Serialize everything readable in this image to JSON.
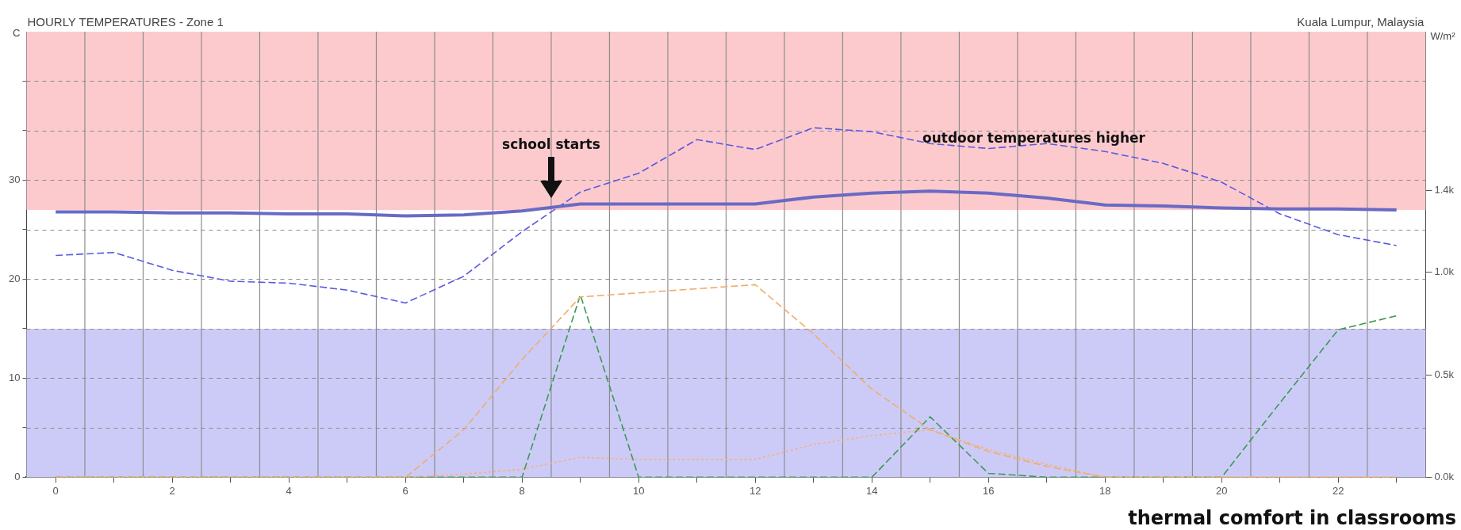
{
  "chart_data": {
    "type": "line",
    "title": "HOURLY TEMPERATURES - Zone 1",
    "subtitle": "Kuala Lumpur, Malaysia",
    "ylabel": "C",
    "y2label": "W/m²",
    "x": [
      0,
      1,
      2,
      3,
      4,
      5,
      6,
      7,
      8,
      9,
      10,
      11,
      12,
      13,
      14,
      15,
      16,
      17,
      18,
      19,
      20,
      21,
      22,
      23
    ],
    "xlim": [
      -0.5,
      23.5
    ],
    "xticks": [
      0,
      {
        "value": 1,
        "label": null
      },
      2,
      {
        "value": 3,
        "label": null
      },
      4,
      {
        "value": 5,
        "label": null
      },
      6,
      {
        "value": 7,
        "label": null
      },
      8,
      {
        "value": 9,
        "label": null
      },
      10,
      {
        "value": 11,
        "label": null
      },
      12,
      {
        "value": 13,
        "label": null
      },
      14,
      {
        "value": 15,
        "label": null
      },
      16,
      {
        "value": 17,
        "label": null
      },
      18,
      {
        "value": 19,
        "label": null
      },
      20,
      {
        "value": 21,
        "label": null
      },
      22,
      {
        "value": 23,
        "label": null
      }
    ],
    "ylim": [
      0,
      45
    ],
    "yticks": [
      0,
      {
        "value": 5,
        "label": null
      },
      10,
      {
        "value": 15,
        "label": null
      },
      20,
      {
        "value": 25,
        "label": null
      },
      30,
      {
        "value": 35,
        "label": null
      },
      {
        "value": 40,
        "label": null
      }
    ],
    "y2lim": [
      0,
      2175
    ],
    "y2ticks": [
      {
        "value": 0,
        "label": "0.0k"
      },
      {
        "value": 500,
        "label": "0.5k"
      },
      {
        "value": 1000,
        "label": "1.0k"
      },
      {
        "value": 1400,
        "label": "1.4k"
      }
    ],
    "grid": true,
    "legend": false,
    "marker": "none",
    "bands": [
      {
        "axis": "y",
        "from": 27,
        "to": 45,
        "color": "#fccacd"
      },
      {
        "axis": "y",
        "from": 0,
        "to": 15,
        "color": "#cccbf8"
      }
    ],
    "series": [
      {
        "color": "#6a6ac4",
        "line_style": "solid",
        "values": [
          26.8,
          26.8,
          26.7,
          26.7,
          26.6,
          26.6,
          26.4,
          26.5,
          26.9,
          27.6,
          27.6,
          27.6,
          27.6,
          28.3,
          28.7,
          28.9,
          28.7,
          28.2,
          27.5,
          27.4,
          27.2,
          27.1,
          27.1,
          27.0
        ]
      },
      {
        "color": "#5a5ae0",
        "line_style": "dashed",
        "values": [
          22.4,
          22.7,
          20.9,
          19.8,
          19.6,
          18.9,
          17.6,
          20.3,
          24.8,
          28.8,
          30.7,
          34.1,
          33.1,
          35.3,
          34.9,
          33.7,
          33.2,
          33.7,
          32.9,
          31.7,
          29.8,
          26.6,
          24.5,
          23.4
        ]
      },
      {
        "color": "#f0ad6a",
        "line_style": "dashed",
        "axis": "y2",
        "values": [
          0,
          0,
          0,
          0,
          0,
          0,
          0,
          232,
          575,
          880,
          900,
          920,
          940,
          700,
          430,
          232,
          126,
          53,
          0,
          0,
          0,
          0,
          0,
          0
        ]
      },
      {
        "color": "#f5b27a",
        "line_style": "dotted",
        "axis": "y2",
        "values": [
          0,
          0,
          0,
          0,
          0,
          0,
          0,
          15,
          39,
          97,
          87,
          87,
          87,
          160,
          203,
          232,
          135,
          63,
          0,
          0,
          0,
          0,
          0,
          0
        ]
      },
      {
        "color": "#3c9a50",
        "line_style": "dashed",
        "axis": "y2",
        "values": [
          0,
          0,
          0,
          0,
          0,
          0,
          0,
          0,
          0,
          890,
          0,
          0,
          0,
          0,
          0,
          295,
          19,
          0,
          0,
          0,
          0,
          363,
          720,
          788
        ]
      }
    ],
    "annotations": [
      "school starts",
      "outdoor temperatures higher",
      "thermal comfort in classrooms"
    ]
  }
}
